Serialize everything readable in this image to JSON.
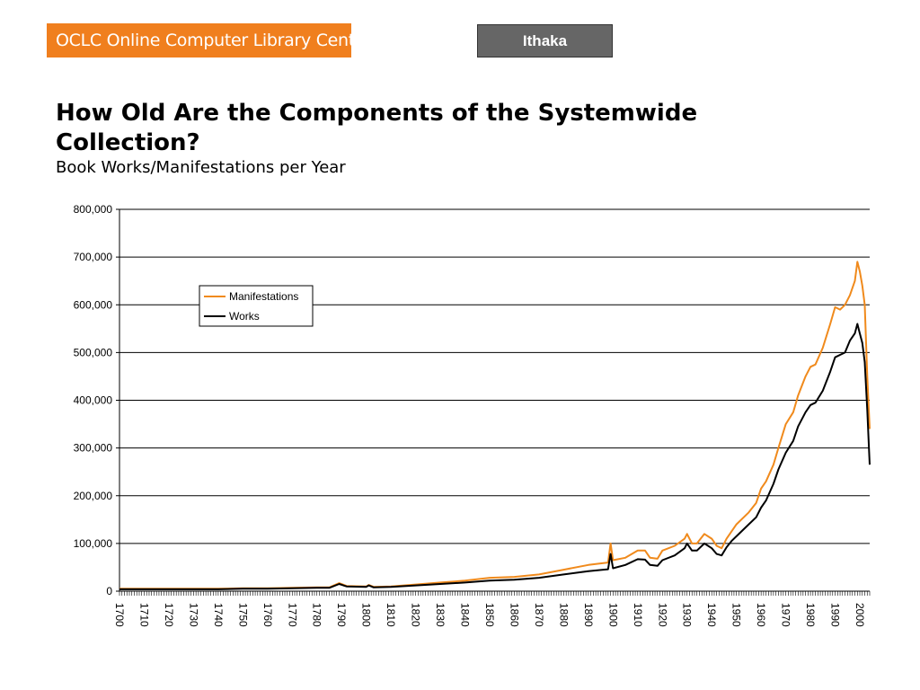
{
  "header": {
    "logo_text": "OCLC Online Computer Library Center",
    "tag_label": "Ithaka"
  },
  "colors": {
    "logo_bg": "#f07f1e",
    "tag_bg": "#666666",
    "manifestations": "#f08a1c",
    "works": "#000000"
  },
  "chart_data": {
    "type": "line",
    "title": "How Old Are the Components of the Systemwide Collection?",
    "subtitle": "Book Works/Manifestations per Year",
    "xlabel": "",
    "ylabel": "",
    "xlim": [
      1700,
      2004
    ],
    "ylim": [
      0,
      800000
    ],
    "yticks": [
      0,
      100000,
      200000,
      300000,
      400000,
      500000,
      600000,
      700000,
      800000
    ],
    "ytick_labels": [
      "0",
      "100,000",
      "200,000",
      "300,000",
      "400,000",
      "500,000",
      "600,000",
      "700,000",
      "800,000"
    ],
    "xtick_labels": [
      "1700",
      "1710",
      "1720",
      "1730",
      "1740",
      "1750",
      "1760",
      "1770",
      "1780",
      "1790",
      "1800",
      "1810",
      "1820",
      "1830",
      "1840",
      "1850",
      "1860",
      "1870",
      "1880",
      "1890",
      "1900",
      "1910",
      "1920",
      "1930",
      "1940",
      "1950",
      "1960",
      "1970",
      "1980",
      "1990",
      "2000"
    ],
    "grid": "horizontal",
    "legend": "upper-left-inset",
    "series": [
      {
        "name": "Manifestations",
        "points": [
          [
            1700,
            5000
          ],
          [
            1710,
            5000
          ],
          [
            1720,
            5000
          ],
          [
            1730,
            5000
          ],
          [
            1740,
            5000
          ],
          [
            1750,
            6000
          ],
          [
            1760,
            6000
          ],
          [
            1770,
            7000
          ],
          [
            1780,
            8000
          ],
          [
            1785,
            8000
          ],
          [
            1789,
            17000
          ],
          [
            1792,
            11000
          ],
          [
            1800,
            10000
          ],
          [
            1801,
            13000
          ],
          [
            1803,
            9000
          ],
          [
            1810,
            10000
          ],
          [
            1820,
            14000
          ],
          [
            1830,
            18000
          ],
          [
            1840,
            22000
          ],
          [
            1850,
            28000
          ],
          [
            1860,
            30000
          ],
          [
            1870,
            35000
          ],
          [
            1880,
            45000
          ],
          [
            1890,
            55000
          ],
          [
            1898,
            60000
          ],
          [
            1899,
            100000
          ],
          [
            1900,
            65000
          ],
          [
            1905,
            70000
          ],
          [
            1910,
            85000
          ],
          [
            1913,
            85000
          ],
          [
            1915,
            70000
          ],
          [
            1918,
            68000
          ],
          [
            1920,
            85000
          ],
          [
            1925,
            95000
          ],
          [
            1929,
            110000
          ],
          [
            1930,
            120000
          ],
          [
            1932,
            100000
          ],
          [
            1934,
            100000
          ],
          [
            1937,
            120000
          ],
          [
            1940,
            110000
          ],
          [
            1942,
            95000
          ],
          [
            1944,
            90000
          ],
          [
            1946,
            110000
          ],
          [
            1948,
            125000
          ],
          [
            1950,
            140000
          ],
          [
            1955,
            165000
          ],
          [
            1958,
            185000
          ],
          [
            1960,
            215000
          ],
          [
            1962,
            230000
          ],
          [
            1965,
            265000
          ],
          [
            1967,
            300000
          ],
          [
            1970,
            350000
          ],
          [
            1973,
            375000
          ],
          [
            1975,
            410000
          ],
          [
            1978,
            450000
          ],
          [
            1980,
            470000
          ],
          [
            1982,
            475000
          ],
          [
            1985,
            510000
          ],
          [
            1988,
            560000
          ],
          [
            1990,
            595000
          ],
          [
            1992,
            590000
          ],
          [
            1994,
            600000
          ],
          [
            1996,
            620000
          ],
          [
            1998,
            650000
          ],
          [
            1999,
            690000
          ],
          [
            2000,
            670000
          ],
          [
            2001,
            640000
          ],
          [
            2002,
            600000
          ],
          [
            2003,
            450000
          ],
          [
            2004,
            340000
          ]
        ]
      },
      {
        "name": "Works",
        "points": [
          [
            1700,
            4000
          ],
          [
            1710,
            4000
          ],
          [
            1720,
            4000
          ],
          [
            1730,
            4000
          ],
          [
            1740,
            4000
          ],
          [
            1750,
            5000
          ],
          [
            1760,
            5000
          ],
          [
            1770,
            6000
          ],
          [
            1780,
            7000
          ],
          [
            1785,
            7000
          ],
          [
            1789,
            15000
          ],
          [
            1792,
            10000
          ],
          [
            1800,
            9000
          ],
          [
            1801,
            12000
          ],
          [
            1803,
            8000
          ],
          [
            1810,
            9000
          ],
          [
            1820,
            12000
          ],
          [
            1830,
            15000
          ],
          [
            1840,
            18000
          ],
          [
            1850,
            22000
          ],
          [
            1860,
            24000
          ],
          [
            1870,
            28000
          ],
          [
            1880,
            35000
          ],
          [
            1890,
            42000
          ],
          [
            1898,
            46000
          ],
          [
            1899,
            78000
          ],
          [
            1900,
            48000
          ],
          [
            1905,
            55000
          ],
          [
            1910,
            67000
          ],
          [
            1913,
            66000
          ],
          [
            1915,
            55000
          ],
          [
            1918,
            53000
          ],
          [
            1920,
            65000
          ],
          [
            1925,
            75000
          ],
          [
            1929,
            90000
          ],
          [
            1930,
            100000
          ],
          [
            1932,
            85000
          ],
          [
            1934,
            85000
          ],
          [
            1937,
            100000
          ],
          [
            1940,
            90000
          ],
          [
            1942,
            78000
          ],
          [
            1944,
            75000
          ],
          [
            1946,
            92000
          ],
          [
            1948,
            105000
          ],
          [
            1950,
            115000
          ],
          [
            1955,
            140000
          ],
          [
            1958,
            155000
          ],
          [
            1960,
            175000
          ],
          [
            1962,
            190000
          ],
          [
            1965,
            225000
          ],
          [
            1967,
            255000
          ],
          [
            1970,
            290000
          ],
          [
            1973,
            315000
          ],
          [
            1975,
            345000
          ],
          [
            1978,
            375000
          ],
          [
            1980,
            390000
          ],
          [
            1982,
            395000
          ],
          [
            1985,
            420000
          ],
          [
            1988,
            460000
          ],
          [
            1990,
            490000
          ],
          [
            1992,
            495000
          ],
          [
            1994,
            500000
          ],
          [
            1996,
            525000
          ],
          [
            1998,
            540000
          ],
          [
            1999,
            560000
          ],
          [
            2000,
            540000
          ],
          [
            2001,
            520000
          ],
          [
            2002,
            480000
          ],
          [
            2003,
            380000
          ],
          [
            2004,
            265000
          ]
        ]
      }
    ]
  }
}
